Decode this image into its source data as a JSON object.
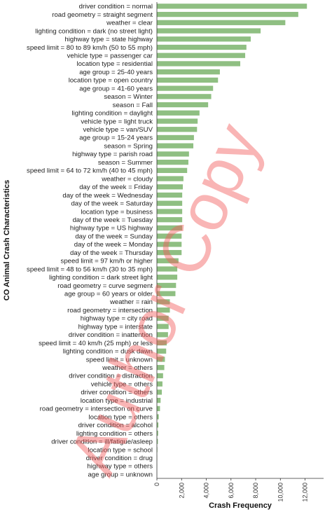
{
  "chart_data": {
    "type": "bar",
    "orientation": "horizontal",
    "xlabel": "Crash Frequency",
    "ylabel": "CO Animal Crash Characteristics",
    "xlim": [
      0,
      13500
    ],
    "xticks": [
      0,
      2000,
      4000,
      6000,
      8000,
      10000,
      12000
    ],
    "xtick_labels": [
      "0",
      "2,000",
      "4,000",
      "6,000",
      "8,000",
      "10,000",
      "12,000"
    ],
    "bar_color": "#8fbf82",
    "grid": false,
    "categories": [
      "driver condition = normal",
      "road geometry = straight segment",
      "weather = clear",
      "lighting condition = dark (no street light)",
      "highway type = state highway",
      "speed limit = 80 to 89 km/h (50 to 55 mph)",
      "vehicle type = passenger car",
      "location type = residential",
      "age group = 25-40 years",
      "location type = open country",
      "age group = 41-60 years",
      "season = Winter",
      "season = Fall",
      "lighting condition = daylight",
      "vehicle type = light truck",
      "vehicle type = van/SUV",
      "age group = 15-24 years",
      "season = Spring",
      "highway type = parish road",
      "season = Summer",
      "speed limit = 64 to 72 km/h (40 to 45 mph)",
      "weather = cloudy",
      "day of the week = Friday",
      "day of the week = Wednesday",
      "day of the week = Saturday",
      "location type = business",
      "day of the week = Tuesday",
      "highway type = US highway",
      "day of the week = Sunday",
      "day of the week = Monday",
      "day of the week = Thursday",
      "speed limit = 97 km/h or higher",
      "speed limit = 48 to 56 km/h (30 to 35 mph)",
      "lighting condition = dark street light",
      "road geometry = curve segment",
      "age group = 60 years or older",
      "weather = rain",
      "road geometry = intersection",
      "highway type = city road",
      "highway type = interstate",
      "driver condition = inattention",
      "speed limit = 40 km/h (25 mph) or less",
      "lighting condition = dusk dawn",
      "speed limit = unknown",
      "weather = others",
      "driver condition = distraction",
      "vehicle type = others",
      "driver condition = others",
      "location type = industrial",
      "road geometry = intersection on curve",
      "location type = others",
      "driver condition = alcohol",
      "lighting condition = others",
      "driver condition = ill/fatigue/asleep",
      "location type = school",
      "driver condition = drug",
      "highway type = others",
      "age group = unknown"
    ],
    "values": [
      12150,
      11450,
      10400,
      8400,
      7600,
      7250,
      7150,
      6750,
      5100,
      4950,
      4550,
      4400,
      4150,
      3450,
      3300,
      3250,
      3000,
      2950,
      2600,
      2550,
      2450,
      2150,
      2100,
      2050,
      2050,
      2050,
      2050,
      2050,
      2000,
      2000,
      2000,
      1750,
      1650,
      1650,
      1550,
      1500,
      1050,
      1050,
      950,
      950,
      900,
      800,
      750,
      650,
      600,
      500,
      450,
      400,
      300,
      250,
      150,
      120,
      100,
      80,
      40,
      20,
      10,
      5
    ]
  },
  "watermark": {
    "text": "Author Copy",
    "color": "#f25a5a"
  }
}
